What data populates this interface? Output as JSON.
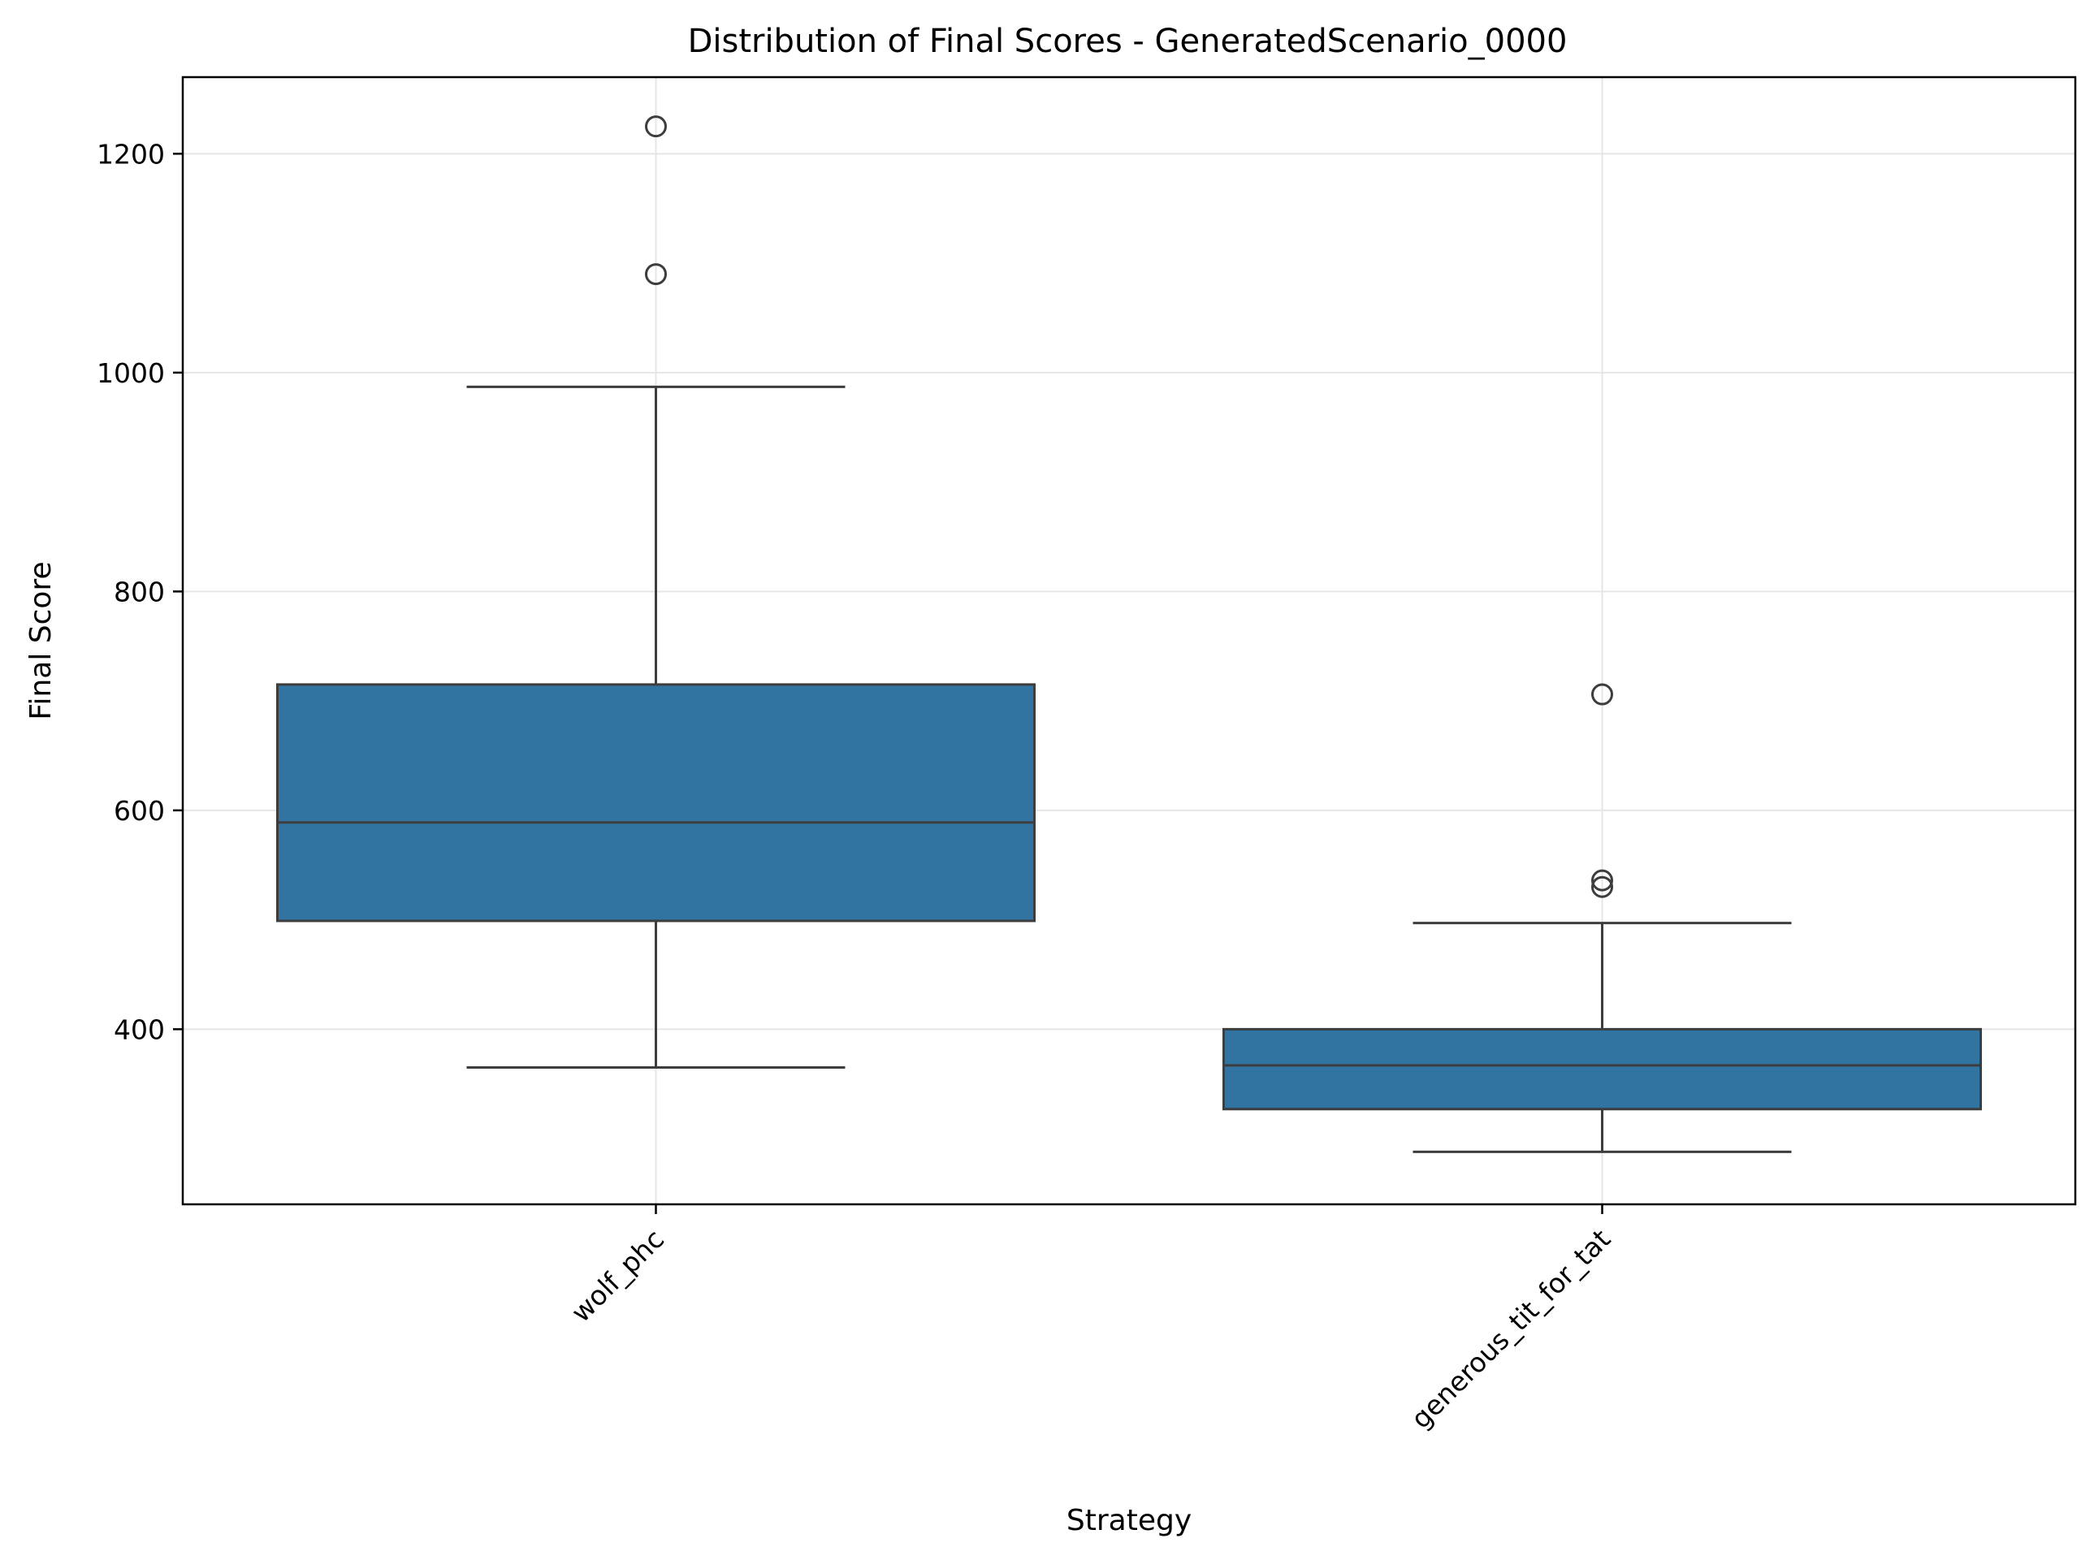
{
  "chart_data": {
    "type": "box",
    "title": "Distribution of Final Scores - GeneratedScenario_0000",
    "xlabel": "Strategy",
    "ylabel": "Final Score",
    "ylim": [
      240,
      1270
    ],
    "yticks": [
      400,
      600,
      800,
      1000,
      1200
    ],
    "grid": true,
    "box_color": "#3274a1",
    "line_color": "#3d3d3d",
    "categories": [
      "wolf_phc",
      "generous_tit_for_tat"
    ],
    "boxes": [
      {
        "category": "wolf_phc",
        "whisker_low": 365,
        "q1": 499,
        "median": 589,
        "q3": 715,
        "whisker_high": 987,
        "outliers": [
          1090,
          1225
        ]
      },
      {
        "category": "generous_tit_for_tat",
        "whisker_low": 288,
        "q1": 327,
        "median": 367,
        "q3": 400,
        "whisker_high": 497,
        "outliers": [
          530,
          536,
          706
        ]
      }
    ]
  }
}
